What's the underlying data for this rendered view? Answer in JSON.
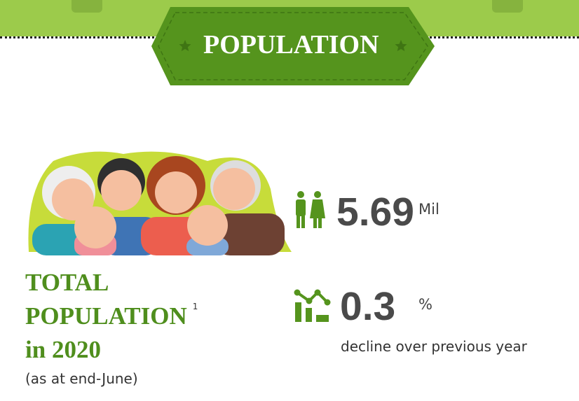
{
  "header": {
    "title": "POPULATION"
  },
  "colors": {
    "band": "#9ccb4b",
    "badge": "#55941d",
    "text_green": "#4f8e1d",
    "value": "#4a4a4a"
  },
  "stats": [
    {
      "icon": "people-icon",
      "value": "5.69",
      "unit": "Mil"
    },
    {
      "icon": "trend-chart-icon",
      "value": "0.3",
      "unit": "%",
      "caption": "decline over previous year"
    }
  ],
  "label": {
    "line1": "TOTAL",
    "line2": "POPULATION",
    "footnote": "1",
    "line3": "in 2020",
    "note": "(as at end-June)"
  }
}
